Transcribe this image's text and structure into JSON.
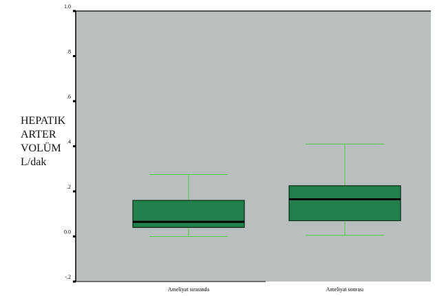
{
  "chart_data": {
    "type": "box",
    "ylabel_lines": [
      "HEPATIK",
      "ARTER",
      "VOLÜM",
      "L/dak"
    ],
    "yticks": [
      {
        "value": 1.0,
        "label": "1.0"
      },
      {
        "value": 0.8,
        "label": ".8"
      },
      {
        "value": 0.6,
        "label": ".6"
      },
      {
        "value": 0.4,
        "label": ".4"
      },
      {
        "value": 0.2,
        "label": ".2"
      },
      {
        "value": 0.0,
        "label": "0.0"
      },
      {
        "value": -0.2,
        "label": "-.2"
      }
    ],
    "ylim": [
      -0.2,
      1.0
    ],
    "grid": false,
    "categories": [
      "Ameliyat sırasında",
      "Ameliyat sonrası"
    ],
    "boxes": [
      {
        "category": "Ameliyat sırasında",
        "min": 0.0,
        "q1": 0.04,
        "median": 0.065,
        "q3": 0.16,
        "max": 0.275
      },
      {
        "category": "Ameliyat sonrası",
        "min": 0.005,
        "q1": 0.07,
        "median": 0.165,
        "q3": 0.225,
        "max": 0.41
      }
    ],
    "colors": {
      "plot_background": "#b9bebe",
      "box_fill": "#207f4a",
      "box_stroke": "#0a2a18",
      "median": "#000000",
      "whisker": "#4fcf3f",
      "axis": "#000000"
    }
  }
}
